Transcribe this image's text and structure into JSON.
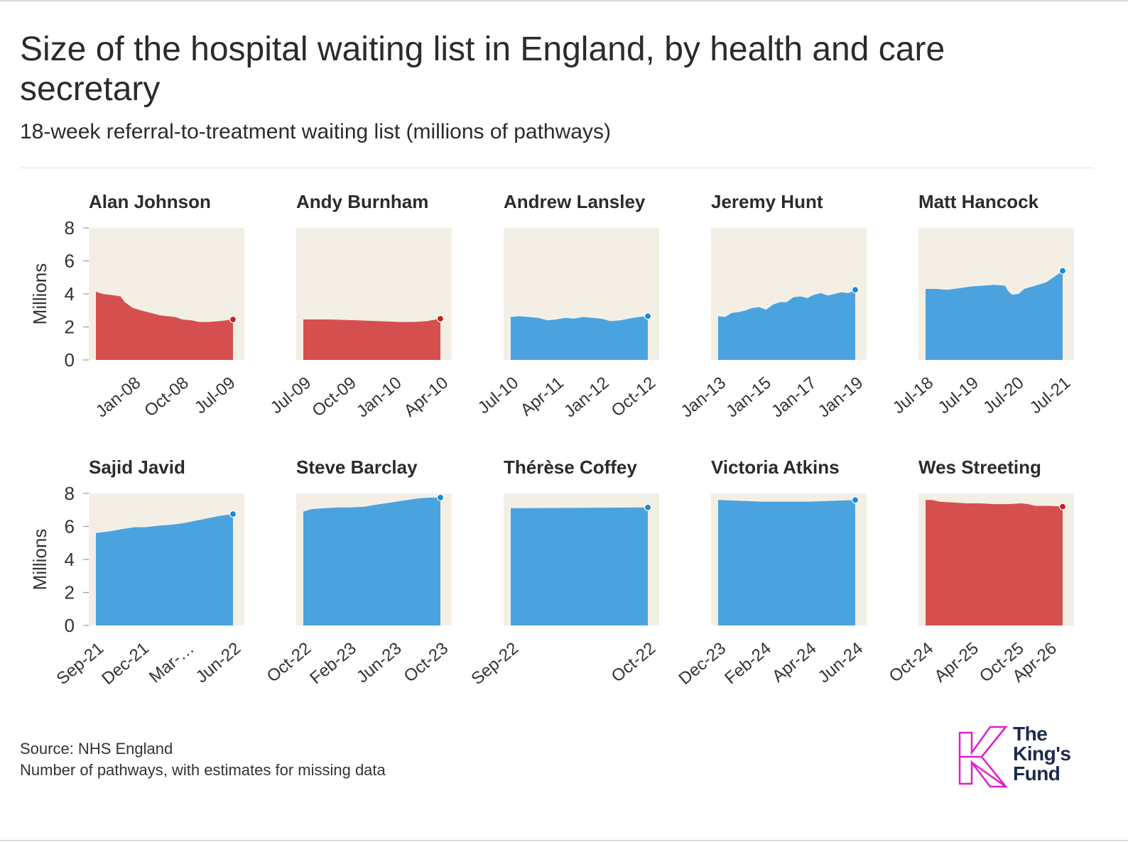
{
  "title": "Size of the hospital waiting list in England, by health and care secretary",
  "subtitle": "18-week referral-to-treatment waiting list (millions of pathways)",
  "source": "Source: NHS England",
  "note": "Number of pathways, with estimates for missing data",
  "logo": {
    "line1": "The",
    "line2": "King's",
    "line3": "Fund",
    "color": "#e020c8"
  },
  "colors": {
    "increase": "#4aa3df",
    "decrease": "#d64f4f",
    "panel_background": "#f4efe4"
  },
  "chart_data": {
    "type": "area",
    "ylabel": "Millions",
    "ylim": [
      0,
      8
    ],
    "yticks": [
      0,
      2,
      4,
      6,
      8
    ],
    "panels": [
      {
        "name": "Alan Johnson",
        "color": "red",
        "xticks": [
          "Jan-08",
          "Oct-08",
          "Jul-09"
        ],
        "xtick_pos": [
          0.27,
          0.62,
          0.96
        ],
        "x": [
          0,
          0.01,
          0.05,
          0.1,
          0.18,
          0.21,
          0.27,
          0.33,
          0.4,
          0.47,
          0.52,
          0.58,
          0.63,
          0.7,
          0.75,
          0.82,
          0.9,
          1.0
        ],
        "values": [
          4.15,
          4.1,
          4.0,
          3.95,
          3.85,
          3.5,
          3.15,
          3.0,
          2.85,
          2.7,
          2.65,
          2.6,
          2.45,
          2.4,
          2.3,
          2.3,
          2.35,
          2.45
        ]
      },
      {
        "name": "Andy Burnham",
        "color": "red",
        "xticks": [
          "Jul-09",
          "Oct-09",
          "Jan-10",
          "Apr-10"
        ],
        "xtick_pos": [
          0.0,
          0.33,
          0.66,
          1.0
        ],
        "x": [
          0,
          0.2,
          0.4,
          0.55,
          0.7,
          0.8,
          0.9,
          1.0
        ],
        "values": [
          2.45,
          2.45,
          2.4,
          2.35,
          2.3,
          2.3,
          2.35,
          2.5
        ]
      },
      {
        "name": "Andrew Lansley",
        "color": "blue",
        "xticks": [
          "Jul-10",
          "Apr-11",
          "Jan-12",
          "Oct-12"
        ],
        "xtick_pos": [
          0.0,
          0.33,
          0.66,
          1.0
        ],
        "x": [
          0,
          0.06,
          0.13,
          0.2,
          0.27,
          0.33,
          0.4,
          0.46,
          0.53,
          0.6,
          0.66,
          0.73,
          0.8,
          0.86,
          0.93,
          1.0
        ],
        "values": [
          2.6,
          2.65,
          2.6,
          2.55,
          2.4,
          2.45,
          2.55,
          2.5,
          2.6,
          2.55,
          2.5,
          2.35,
          2.4,
          2.5,
          2.6,
          2.65
        ]
      },
      {
        "name": "Jeremy Hunt",
        "color": "blue",
        "xticks": [
          "Jan-13",
          "Jan-15",
          "Jan-17",
          "Jan-19"
        ],
        "xtick_pos": [
          0.0,
          0.33,
          0.66,
          1.0
        ],
        "x": [
          0,
          0.05,
          0.1,
          0.15,
          0.2,
          0.25,
          0.3,
          0.35,
          0.4,
          0.45,
          0.5,
          0.55,
          0.6,
          0.65,
          0.7,
          0.75,
          0.8,
          0.85,
          0.9,
          0.95,
          1.0
        ],
        "values": [
          2.65,
          2.6,
          2.85,
          2.9,
          3.0,
          3.15,
          3.2,
          3.05,
          3.35,
          3.5,
          3.5,
          3.8,
          3.85,
          3.75,
          3.95,
          4.05,
          3.9,
          4.0,
          4.1,
          4.05,
          4.25
        ]
      },
      {
        "name": "Matt Hancock",
        "color": "blue",
        "xticks": [
          "Jul-18",
          "Jul-19",
          "Jul-20",
          "Jul-21"
        ],
        "xtick_pos": [
          0.0,
          0.33,
          0.66,
          1.0
        ],
        "x": [
          0,
          0.08,
          0.16,
          0.25,
          0.33,
          0.42,
          0.5,
          0.58,
          0.6,
          0.63,
          0.68,
          0.72,
          0.8,
          0.88,
          0.95,
          1.0
        ],
        "values": [
          4.3,
          4.3,
          4.25,
          4.35,
          4.45,
          4.5,
          4.55,
          4.5,
          4.2,
          3.95,
          4.0,
          4.3,
          4.5,
          4.7,
          5.1,
          5.4
        ]
      },
      {
        "name": "Sajid Javid",
        "color": "blue",
        "xticks": [
          "Sep-21",
          "Dec-21",
          "Mar-…",
          "Jun-22"
        ],
        "xtick_pos": [
          0.0,
          0.33,
          0.66,
          1.0
        ],
        "x": [
          0,
          0.1,
          0.2,
          0.28,
          0.36,
          0.46,
          0.55,
          0.64,
          0.73,
          0.82,
          0.91,
          1.0
        ],
        "values": [
          5.6,
          5.7,
          5.85,
          5.95,
          5.95,
          6.05,
          6.1,
          6.2,
          6.35,
          6.5,
          6.65,
          6.75
        ]
      },
      {
        "name": "Steve Barclay",
        "color": "blue",
        "xticks": [
          "Oct-22",
          "Feb-23",
          "Jun-23",
          "Oct-23"
        ],
        "xtick_pos": [
          0.0,
          0.33,
          0.66,
          1.0
        ],
        "x": [
          0,
          0.06,
          0.15,
          0.25,
          0.35,
          0.45,
          0.52,
          0.6,
          0.68,
          0.76,
          0.84,
          0.92,
          1.0
        ],
        "values": [
          6.9,
          7.05,
          7.1,
          7.15,
          7.15,
          7.2,
          7.3,
          7.4,
          7.5,
          7.6,
          7.7,
          7.75,
          7.75
        ]
      },
      {
        "name": "Thérèse Coffey",
        "color": "blue",
        "xticks": [
          "Sep-22",
          "Oct-22"
        ],
        "xtick_pos": [
          0.0,
          1.0
        ],
        "x": [
          0,
          1.0
        ],
        "values": [
          7.1,
          7.15
        ]
      },
      {
        "name": "Victoria Atkins",
        "color": "blue",
        "xticks": [
          "Dec-23",
          "Feb-24",
          "Apr-24",
          "Jun-24"
        ],
        "xtick_pos": [
          0.0,
          0.33,
          0.66,
          1.0
        ],
        "x": [
          0,
          0.17,
          0.33,
          0.5,
          0.66,
          0.83,
          1.0
        ],
        "values": [
          7.6,
          7.55,
          7.5,
          7.5,
          7.5,
          7.55,
          7.6
        ]
      },
      {
        "name": "Wes Streeting",
        "color": "red",
        "xticks": [
          "Oct-24",
          "Apr-25",
          "Oct-25",
          "Apr-26"
        ],
        "xtick_pos": [
          0.0,
          0.33,
          0.66,
          0.9
        ],
        "x": [
          0,
          0.05,
          0.1,
          0.2,
          0.3,
          0.4,
          0.5,
          0.6,
          0.7,
          0.75,
          0.8,
          0.9,
          1.0
        ],
        "values": [
          7.6,
          7.6,
          7.5,
          7.45,
          7.4,
          7.4,
          7.35,
          7.35,
          7.4,
          7.35,
          7.25,
          7.25,
          7.2
        ]
      }
    ]
  }
}
